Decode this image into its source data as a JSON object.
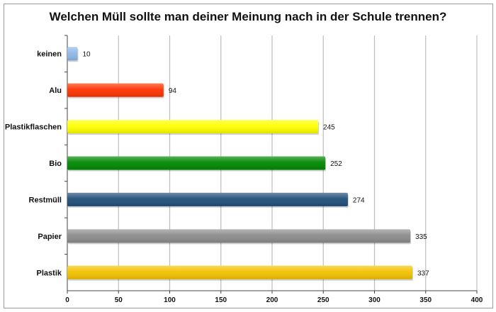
{
  "chart_data": {
    "type": "bar",
    "orientation": "horizontal",
    "title": "Welchen Müll sollte man deiner Meinung nach in der Schule trennen?",
    "categories": [
      "keinen",
      "Alu",
      "Plastikflaschen",
      "Bio",
      "Restmüll",
      "Papier",
      "Plastik"
    ],
    "values": [
      10,
      94,
      245,
      252,
      274,
      335,
      337
    ],
    "colors": [
      "#8fb8e6",
      "#ff3300",
      "#ffff00",
      "#008800",
      "#1f4e79",
      "#8c8c8c",
      "#f2c200"
    ],
    "xlim": [
      0,
      400
    ],
    "xticks": [
      0,
      50,
      100,
      150,
      200,
      250,
      300,
      350,
      400
    ],
    "grid": true,
    "legend": "none",
    "xlabel": "",
    "ylabel": ""
  }
}
